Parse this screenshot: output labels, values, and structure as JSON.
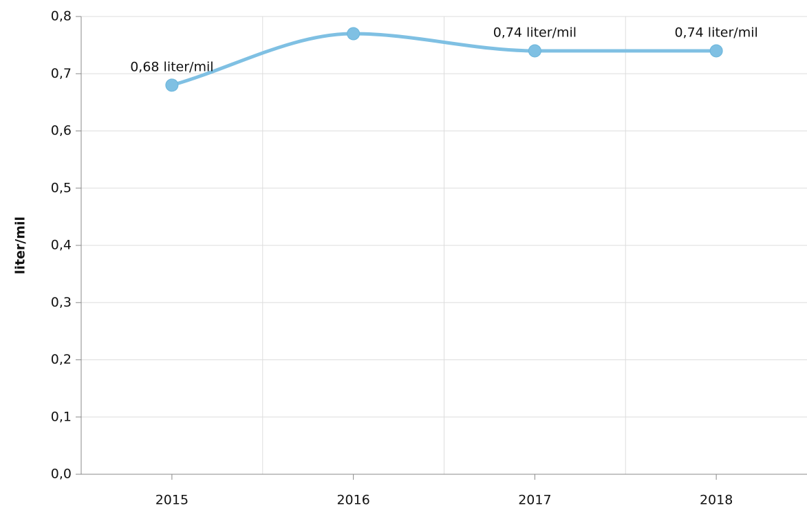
{
  "chart_data": {
    "type": "line",
    "y_label": "liter/mil",
    "categories": [
      "2015",
      "2016",
      "2017",
      "2018"
    ],
    "series": [
      {
        "name": "liter/mil",
        "color": "#7fc0e3",
        "values": [
          0.68,
          0.77,
          0.74,
          0.74
        ],
        "value_labels": [
          "0,68 liter/mil",
          null,
          "0,74 liter/mil",
          "0,74 liter/mil"
        ]
      }
    ],
    "ylim": [
      0,
      0.8
    ],
    "yticks": [
      {
        "value": 0,
        "label": "0,0"
      },
      {
        "value": 0.1,
        "label": "0,1"
      },
      {
        "value": 0.2,
        "label": "0,2"
      },
      {
        "value": 0.3,
        "label": "0,3"
      },
      {
        "value": 0.4,
        "label": "0,4"
      },
      {
        "value": 0.5,
        "label": "0,5"
      },
      {
        "value": 0.6,
        "label": "0,6"
      },
      {
        "value": 0.7,
        "label": "0,7"
      },
      {
        "value": 0.8,
        "label": "0,8"
      }
    ],
    "grid": true,
    "smooth": true
  }
}
